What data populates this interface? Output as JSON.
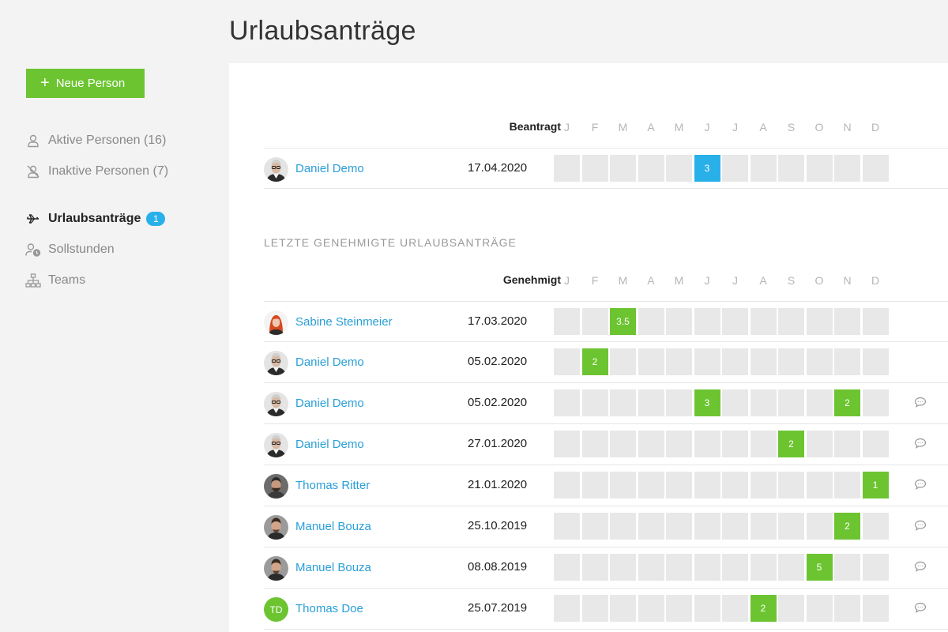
{
  "page_title": "Urlaubsanträge",
  "sidebar": {
    "new_button": "Neue Person",
    "items": [
      {
        "label": "Aktive Personen (16)"
      },
      {
        "label": "Inaktive Personen (7)"
      },
      {
        "label": "Urlaubsanträge",
        "badge": "1"
      },
      {
        "label": "Sollstunden"
      },
      {
        "label": "Teams"
      }
    ]
  },
  "months": [
    "J",
    "F",
    "M",
    "A",
    "M",
    "J",
    "J",
    "A",
    "S",
    "O",
    "N",
    "D"
  ],
  "pending": {
    "column_label": "Beantragt",
    "rows": [
      {
        "name": "Daniel Demo",
        "date": "17.04.2020",
        "avatar": "daniel",
        "cells": [
          {
            "month": 5,
            "value": "3",
            "color": "blue"
          }
        ],
        "comment": false
      }
    ]
  },
  "approved": {
    "section_title": "LETZTE GENEHMIGTE URLAUBSANTRÄGE",
    "column_label": "Genehmigt",
    "rows": [
      {
        "name": "Sabine Steinmeier",
        "date": "17.03.2020",
        "avatar": "sabine",
        "cells": [
          {
            "month": 2,
            "value": "3.5"
          }
        ],
        "comment": false
      },
      {
        "name": "Daniel Demo",
        "date": "05.02.2020",
        "avatar": "daniel",
        "cells": [
          {
            "month": 1,
            "value": "2"
          }
        ],
        "comment": false
      },
      {
        "name": "Daniel Demo",
        "date": "05.02.2020",
        "avatar": "daniel",
        "cells": [
          {
            "month": 5,
            "value": "3"
          },
          {
            "month": 10,
            "value": "2"
          }
        ],
        "comment": true
      },
      {
        "name": "Daniel Demo",
        "date": "27.01.2020",
        "avatar": "daniel",
        "cells": [
          {
            "month": 8,
            "value": "2"
          }
        ],
        "comment": true
      },
      {
        "name": "Thomas Ritter",
        "date": "21.01.2020",
        "avatar": "thomas",
        "cells": [
          {
            "month": 11,
            "value": "1"
          }
        ],
        "comment": true
      },
      {
        "name": "Manuel Bouza",
        "date": "25.10.2019",
        "avatar": "manuel",
        "cells": [
          {
            "month": 10,
            "value": "2"
          }
        ],
        "comment": true
      },
      {
        "name": "Manuel Bouza",
        "date": "08.08.2019",
        "avatar": "manuel",
        "cells": [
          {
            "month": 9,
            "value": "5"
          }
        ],
        "comment": true
      },
      {
        "name": "Thomas Doe",
        "date": "25.07.2019",
        "avatar": "initials",
        "initials": "TD",
        "cells": [
          {
            "month": 7,
            "value": "2"
          }
        ],
        "comment": true
      }
    ]
  },
  "colors": {
    "green": "#6cc431",
    "blue": "#2ab0e8",
    "empty": "#e8e8e8",
    "link": "#2a9fd8"
  }
}
